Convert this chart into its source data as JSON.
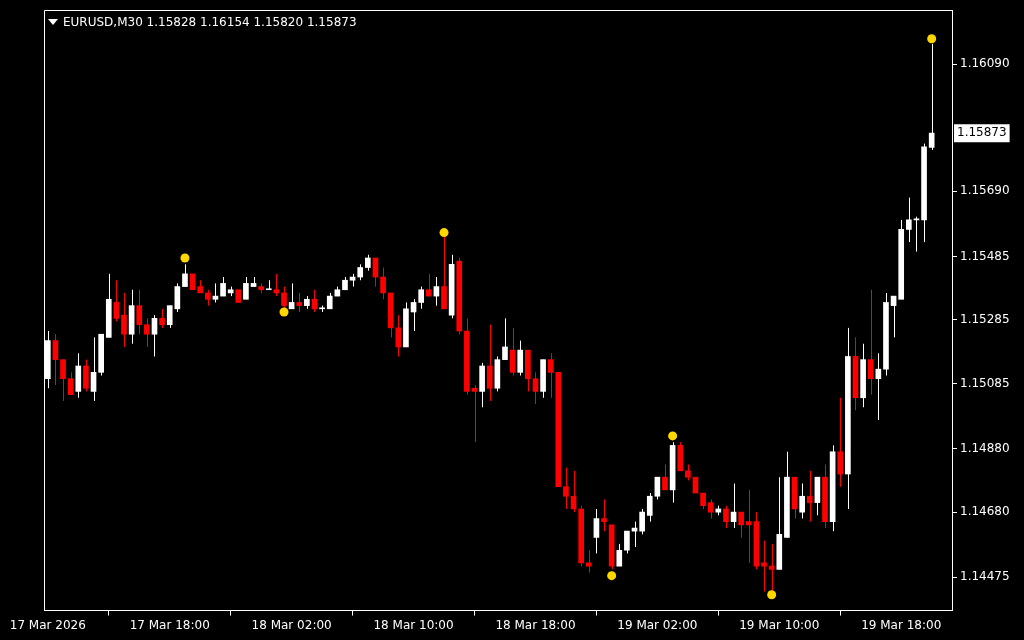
{
  "chart_data": {
    "type": "candlestick",
    "title": "EURUSD,M30 1.15828 1.16154 1.15820 1.15873",
    "x": [
      "2026-03-17T10:00",
      "2026-03-17T10:30",
      "2026-03-17T11:00",
      "2026-03-17T11:30",
      "2026-03-17T12:00",
      "2026-03-17T12:30",
      "2026-03-17T13:00",
      "2026-03-17T13:30",
      "2026-03-17T14:00",
      "2026-03-17T14:30",
      "2026-03-17T15:00",
      "2026-03-17T15:30",
      "2026-03-17T16:00",
      "2026-03-17T16:30",
      "2026-03-17T17:00",
      "2026-03-17T17:30",
      "2026-03-17T18:00",
      "2026-03-17T18:30",
      "2026-03-17T19:00",
      "2026-03-17T19:30",
      "2026-03-17T20:00",
      "2026-03-17T20:30",
      "2026-03-17T21:00",
      "2026-03-17T21:30",
      "2026-03-17T22:00",
      "2026-03-17T22:30",
      "2026-03-17T23:00",
      "2026-03-17T23:30",
      "2026-03-18T00:00",
      "2026-03-18T00:30",
      "2026-03-18T01:00",
      "2026-03-18T01:30",
      "2026-03-18T02:00",
      "2026-03-18T02:30",
      "2026-03-18T03:00",
      "2026-03-18T03:30",
      "2026-03-18T04:00",
      "2026-03-18T04:30",
      "2026-03-18T05:00",
      "2026-03-18T05:30",
      "2026-03-18T06:00",
      "2026-03-18T06:30",
      "2026-03-18T07:00",
      "2026-03-18T07:30",
      "2026-03-18T08:00",
      "2026-03-18T08:30",
      "2026-03-18T09:00",
      "2026-03-18T09:30",
      "2026-03-18T10:00",
      "2026-03-18T10:30",
      "2026-03-18T11:00",
      "2026-03-18T11:30",
      "2026-03-18T12:00",
      "2026-03-18T12:30",
      "2026-03-18T13:00",
      "2026-03-18T13:30",
      "2026-03-18T14:00",
      "2026-03-18T14:30",
      "2026-03-18T15:00",
      "2026-03-18T15:30",
      "2026-03-18T16:00",
      "2026-03-18T16:30",
      "2026-03-18T17:00",
      "2026-03-18T17:30",
      "2026-03-18T18:00",
      "2026-03-18T18:30",
      "2026-03-18T19:00",
      "2026-03-18T19:30",
      "2026-03-18T20:00",
      "2026-03-18T20:30",
      "2026-03-18T21:00",
      "2026-03-18T21:30",
      "2026-03-18T22:00",
      "2026-03-18T22:30",
      "2026-03-18T23:00",
      "2026-03-18T23:30",
      "2026-03-19T00:00",
      "2026-03-19T00:30",
      "2026-03-19T01:00",
      "2026-03-19T01:30",
      "2026-03-19T02:00",
      "2026-03-19T02:30",
      "2026-03-19T03:00",
      "2026-03-19T03:30",
      "2026-03-19T04:00",
      "2026-03-19T04:30",
      "2026-03-19T05:00",
      "2026-03-19T05:30",
      "2026-03-19T06:00",
      "2026-03-19T06:30",
      "2026-03-19T07:00",
      "2026-03-19T07:30",
      "2026-03-19T08:00",
      "2026-03-19T08:30",
      "2026-03-19T09:00",
      "2026-03-19T09:30",
      "2026-03-19T10:00",
      "2026-03-19T10:30",
      "2026-03-19T11:00",
      "2026-03-19T11:30",
      "2026-03-19T12:00",
      "2026-03-19T12:30",
      "2026-03-19T13:00",
      "2026-03-19T13:30",
      "2026-03-19T14:00",
      "2026-03-19T14:30",
      "2026-03-19T15:00",
      "2026-03-19T15:30",
      "2026-03-19T16:00",
      "2026-03-19T16:30",
      "2026-03-19T17:00",
      "2026-03-19T17:30",
      "2026-03-19T18:00",
      "2026-03-19T18:30",
      "2026-03-19T19:00",
      "2026-03-19T19:30",
      "2026-03-19T20:00"
    ],
    "ohlc": [
      [
        1.151,
        1.1525,
        1.1507,
        1.1522
      ],
      [
        1.1522,
        1.1524,
        1.1508,
        1.1516
      ],
      [
        1.1516,
        1.1516,
        1.1503,
        1.151
      ],
      [
        1.151,
        1.1512,
        1.1505,
        1.1505
      ],
      [
        1.1506,
        1.1518,
        1.1504,
        1.1514
      ],
      [
        1.1514,
        1.1516,
        1.1506,
        1.1507
      ],
      [
        1.1506,
        1.1523,
        1.1503,
        1.1512
      ],
      [
        1.1512,
        1.1524,
        1.1511,
        1.1524
      ],
      [
        1.1523,
        1.1543,
        1.1523,
        1.1535
      ],
      [
        1.1534,
        1.1541,
        1.1528,
        1.1529
      ],
      [
        1.153,
        1.1537,
        1.152,
        1.1524
      ],
      [
        1.1524,
        1.1538,
        1.1521,
        1.1533
      ],
      [
        1.1533,
        1.1538,
        1.1524,
        1.1527
      ],
      [
        1.1527,
        1.1529,
        1.152,
        1.1524
      ],
      [
        1.1524,
        1.153,
        1.1517,
        1.1529
      ],
      [
        1.1529,
        1.1532,
        1.1526,
        1.1527
      ],
      [
        1.1527,
        1.1533,
        1.1526,
        1.1533
      ],
      [
        1.1532,
        1.154,
        1.1531,
        1.1539
      ],
      [
        1.1539,
        1.1546,
        1.1539,
        1.1543
      ],
      [
        1.1543,
        1.1543,
        1.1538,
        1.1538
      ],
      [
        1.1539,
        1.1541,
        1.1537,
        1.1537
      ],
      [
        1.1537,
        1.1538,
        1.1533,
        1.1535
      ],
      [
        1.1535,
        1.154,
        1.1534,
        1.1536
      ],
      [
        1.1536,
        1.1542,
        1.1536,
        1.154
      ],
      [
        1.1537,
        1.1539,
        1.1536,
        1.1538
      ],
      [
        1.1538,
        1.1538,
        1.1534,
        1.1534
      ],
      [
        1.1535,
        1.1542,
        1.1535,
        1.154
      ],
      [
        1.1539,
        1.1542,
        1.1539,
        1.154
      ],
      [
        1.1539,
        1.154,
        1.1537,
        1.1538
      ],
      [
        1.1538,
        1.1541,
        1.1538,
        1.1538
      ],
      [
        1.1538,
        1.1543,
        1.1536,
        1.1537
      ],
      [
        1.1537,
        1.1539,
        1.1532,
        1.1533
      ],
      [
        1.1532,
        1.154,
        1.1532,
        1.1534
      ],
      [
        1.1534,
        1.1537,
        1.1531,
        1.1533
      ],
      [
        1.1533,
        1.1536,
        1.1532,
        1.1535
      ],
      [
        1.1535,
        1.1538,
        1.1531,
        1.1532
      ],
      [
        1.1532,
        1.1533,
        1.1531,
        1.1532
      ],
      [
        1.1532,
        1.1537,
        1.1532,
        1.1536
      ],
      [
        1.1536,
        1.1539,
        1.1536,
        1.1538
      ],
      [
        1.1538,
        1.1542,
        1.1538,
        1.1541
      ],
      [
        1.1541,
        1.1543,
        1.1539,
        1.1542
      ],
      [
        1.1542,
        1.1546,
        1.1541,
        1.1545
      ],
      [
        1.1545,
        1.1549,
        1.1544,
        1.1548
      ],
      [
        1.1548,
        1.1548,
        1.1539,
        1.1542
      ],
      [
        1.1542,
        1.1545,
        1.1535,
        1.1537
      ],
      [
        1.1537,
        1.1537,
        1.1523,
        1.1526
      ],
      [
        1.1526,
        1.153,
        1.1517,
        1.152
      ],
      [
        1.152,
        1.1534,
        1.152,
        1.1532
      ],
      [
        1.1531,
        1.1535,
        1.1525,
        1.1534
      ],
      [
        1.1534,
        1.1539,
        1.1532,
        1.1538
      ],
      [
        1.1538,
        1.1543,
        1.1536,
        1.1536
      ],
      [
        1.1536,
        1.1542,
        1.1533,
        1.1539
      ],
      [
        1.1539,
        1.1555,
        1.1532,
        1.1532
      ],
      [
        1.153,
        1.1549,
        1.1529,
        1.1546
      ],
      [
        1.1547,
        1.1548,
        1.1524,
        1.1525
      ],
      [
        1.1525,
        1.1529,
        1.1505,
        1.1506
      ],
      [
        1.1507,
        1.1508,
        1.149,
        1.1506
      ],
      [
        1.1506,
        1.1515,
        1.1501,
        1.1514
      ],
      [
        1.1514,
        1.1527,
        1.1503,
        1.1507
      ],
      [
        1.1507,
        1.1517,
        1.1506,
        1.1516
      ],
      [
        1.1516,
        1.1529,
        1.1516,
        1.152
      ],
      [
        1.1519,
        1.1526,
        1.1511,
        1.1512
      ],
      [
        1.1512,
        1.1522,
        1.1511,
        1.1519
      ],
      [
        1.1519,
        1.1519,
        1.1506,
        1.151
      ],
      [
        1.151,
        1.1512,
        1.1502,
        1.1506
      ],
      [
        1.1506,
        1.1516,
        1.1504,
        1.1516
      ],
      [
        1.1516,
        1.1518,
        1.1504,
        1.1512
      ],
      [
        1.1512,
        1.1512,
        1.1476,
        1.1476
      ],
      [
        1.1476,
        1.1482,
        1.1469,
        1.1473
      ],
      [
        1.1473,
        1.1481,
        1.1468,
        1.1469
      ],
      [
        1.1469,
        1.147,
        1.1451,
        1.1452
      ],
      [
        1.1452,
        1.1456,
        1.1449,
        1.1451
      ],
      [
        1.146,
        1.1469,
        1.1455,
        1.1466
      ],
      [
        1.1466,
        1.1472,
        1.1462,
        1.1465
      ],
      [
        1.1464,
        1.1464,
        1.145,
        1.1451
      ],
      [
        1.1451,
        1.1458,
        1.1451,
        1.1456
      ],
      [
        1.1456,
        1.1462,
        1.1455,
        1.1462
      ],
      [
        1.1462,
        1.1465,
        1.1457,
        1.1463
      ],
      [
        1.1462,
        1.1469,
        1.1461,
        1.1468
      ],
      [
        1.1467,
        1.1474,
        1.1465,
        1.1473
      ],
      [
        1.1473,
        1.1479,
        1.1472,
        1.1479
      ],
      [
        1.1479,
        1.1483,
        1.1475,
        1.1475
      ],
      [
        1.1475,
        1.149,
        1.1471,
        1.1489
      ],
      [
        1.1489,
        1.149,
        1.1481,
        1.1481
      ],
      [
        1.1481,
        1.1483,
        1.1478,
        1.1479
      ],
      [
        1.1479,
        1.1479,
        1.1474,
        1.1474
      ],
      [
        1.1474,
        1.1474,
        1.1469,
        1.147
      ],
      [
        1.1471,
        1.1472,
        1.1466,
        1.1468
      ],
      [
        1.1468,
        1.147,
        1.1467,
        1.1469
      ],
      [
        1.1469,
        1.147,
        1.1463,
        1.1465
      ],
      [
        1.1465,
        1.1477,
        1.1463,
        1.1468
      ],
      [
        1.1468,
        1.1468,
        1.146,
        1.1464
      ],
      [
        1.1465,
        1.1475,
        1.1452,
        1.1464
      ],
      [
        1.1465,
        1.1468,
        1.145,
        1.1451
      ],
      [
        1.1452,
        1.1459,
        1.1443,
        1.1451
      ],
      [
        1.1451,
        1.1458,
        1.1443,
        1.145
      ],
      [
        1.145,
        1.1479,
        1.145,
        1.1461
      ],
      [
        1.146,
        1.1487,
        1.146,
        1.1479
      ],
      [
        1.1479,
        1.1479,
        1.1466,
        1.1469
      ],
      [
        1.1468,
        1.1477,
        1.1466,
        1.1473
      ],
      [
        1.1473,
        1.1481,
        1.1465,
        1.1471
      ],
      [
        1.1471,
        1.1479,
        1.1467,
        1.1479
      ],
      [
        1.1479,
        1.1483,
        1.1463,
        1.1465
      ],
      [
        1.1465,
        1.1489,
        1.1462,
        1.1487
      ],
      [
        1.1487,
        1.1504,
        1.1476,
        1.148
      ],
      [
        1.148,
        1.1526,
        1.1469,
        1.1517
      ],
      [
        1.1517,
        1.1523,
        1.15,
        1.1504
      ],
      [
        1.1504,
        1.1521,
        1.1501,
        1.1516
      ],
      [
        1.1516,
        1.1538,
        1.1505,
        1.151
      ],
      [
        1.151,
        1.1518,
        1.1497,
        1.1513
      ],
      [
        1.1513,
        1.1537,
        1.1511,
        1.1534
      ],
      [
        1.1533,
        1.1536,
        1.1523,
        1.1536
      ],
      [
        1.1535,
        1.156,
        1.1535,
        1.1557
      ],
      [
        1.1557,
        1.1567,
        1.1553,
        1.156
      ],
      [
        1.156,
        1.1561,
        1.155,
        1.156
      ],
      [
        1.156,
        1.1584,
        1.1553,
        1.1583
      ],
      [
        1.15828,
        1.16154,
        1.1582,
        1.15873
      ]
    ],
    "series": [
      {
        "type": "scatter",
        "x": [
          "2026-03-17T19:00",
          "2026-03-18T01:30",
          "2026-03-18T12:00",
          "2026-03-18T23:00",
          "2026-03-19T03:00",
          "2026-03-19T09:30",
          "2026-03-19T20:00"
        ],
        "values": [
          1.1548,
          1.1531,
          1.1556,
          1.1448,
          1.1492,
          1.1442,
          1.1617
        ],
        "color": "#ffd700",
        "marker": "circle"
      }
    ],
    "xlim": [
      "2026-03-17T09:45",
      "2026-03-19T21:20"
    ],
    "xticks": [
      {
        "value": "2026-03-17T10:00",
        "label": "17 Mar 2026"
      },
      {
        "value": "2026-03-17T18:00",
        "label": "17 Mar 18:00"
      },
      {
        "value": "2026-03-18T02:00",
        "label": "18 Mar 02:00"
      },
      {
        "value": "2026-03-18T10:00",
        "label": "18 Mar 10:00"
      },
      {
        "value": "2026-03-18T18:00",
        "label": "18 Mar 18:00"
      },
      {
        "value": "2026-03-19T02:00",
        "label": "19 Mar 02:00"
      },
      {
        "value": "2026-03-19T10:00",
        "label": "19 Mar 10:00"
      },
      {
        "value": "2026-03-19T18:00",
        "label": "19 Mar 18:00"
      }
    ],
    "ylim": [
      1.1437,
      1.1626
    ],
    "yticks": [
      {
        "value": 1.1609,
        "label": "1.16090"
      },
      {
        "value": 1.1569,
        "label": "1.15690"
      },
      {
        "value": 1.15485,
        "label": "1.15485"
      },
      {
        "value": 1.15285,
        "label": "1.15285"
      },
      {
        "value": 1.15085,
        "label": "1.15085"
      },
      {
        "value": 1.1488,
        "label": "1.14880"
      },
      {
        "value": 1.1468,
        "label": "1.14680"
      },
      {
        "value": 1.14475,
        "label": "1.14475"
      }
    ],
    "annotations": [
      "1.15873"
    ],
    "grid": false,
    "legend": false
  }
}
